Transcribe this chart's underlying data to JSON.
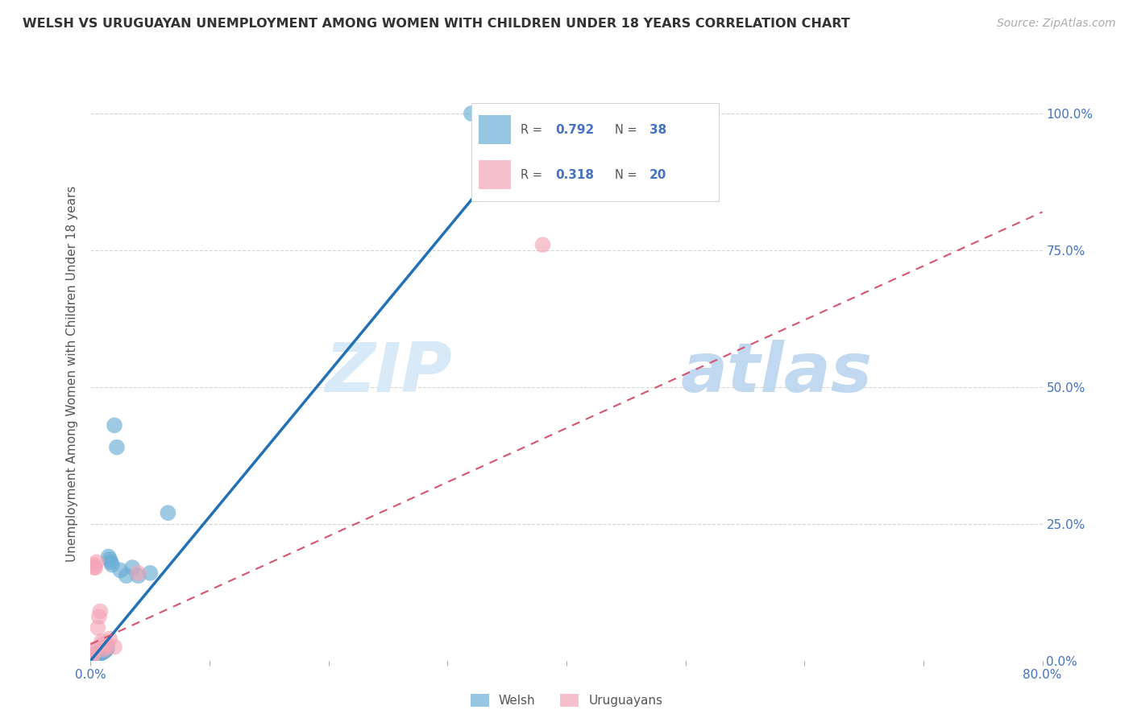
{
  "title": "WELSH VS URUGUAYAN UNEMPLOYMENT AMONG WOMEN WITH CHILDREN UNDER 18 YEARS CORRELATION CHART",
  "source": "Source: ZipAtlas.com",
  "ylabel": "Unemployment Among Women with Children Under 18 years",
  "xlabel": "",
  "xlim": [
    0,
    0.8
  ],
  "ylim": [
    0,
    1.05
  ],
  "welsh_R": 0.792,
  "welsh_N": 38,
  "uruguayan_R": 0.318,
  "uruguayan_N": 20,
  "welsh_color": "#6baed6",
  "uruguayan_color": "#f4a6b8",
  "regression_welsh_color": "#2171b5",
  "regression_uruguayan_color": "#d6546e",
  "watermark_zip_color": "#d8eaf8",
  "watermark_atlas_color": "#c0d8f0",
  "background_color": "#ffffff",
  "welsh_x": [
    0.001,
    0.001,
    0.002,
    0.002,
    0.003,
    0.003,
    0.004,
    0.004,
    0.005,
    0.005,
    0.006,
    0.006,
    0.007,
    0.007,
    0.008,
    0.008,
    0.009,
    0.009,
    0.01,
    0.01,
    0.011,
    0.012,
    0.013,
    0.014,
    0.015,
    0.016,
    0.017,
    0.018,
    0.02,
    0.022,
    0.025,
    0.03,
    0.035,
    0.04,
    0.05,
    0.065,
    0.32,
    0.38
  ],
  "welsh_y": [
    0.005,
    0.007,
    0.006,
    0.008,
    0.007,
    0.009,
    0.008,
    0.01,
    0.009,
    0.011,
    0.01,
    0.013,
    0.011,
    0.014,
    0.013,
    0.015,
    0.014,
    0.016,
    0.015,
    0.017,
    0.016,
    0.018,
    0.02,
    0.022,
    0.19,
    0.185,
    0.18,
    0.175,
    0.43,
    0.39,
    0.165,
    0.155,
    0.17,
    0.155,
    0.16,
    0.27,
    1.0,
    1.0
  ],
  "uruguayan_x": [
    0.001,
    0.001,
    0.002,
    0.002,
    0.003,
    0.003,
    0.004,
    0.005,
    0.006,
    0.007,
    0.008,
    0.009,
    0.01,
    0.011,
    0.012,
    0.014,
    0.016,
    0.02,
    0.04,
    0.38
  ],
  "uruguayan_y": [
    0.005,
    0.015,
    0.01,
    0.02,
    0.17,
    0.175,
    0.17,
    0.18,
    0.06,
    0.08,
    0.09,
    0.035,
    0.03,
    0.02,
    0.025,
    0.03,
    0.04,
    0.025,
    0.16,
    0.76
  ],
  "welsh_line_x": [
    0.0,
    0.38
  ],
  "welsh_line_y": [
    0.0,
    1.0
  ],
  "uru_line_x": [
    0.0,
    0.8
  ],
  "uru_line_y": [
    0.03,
    0.82
  ]
}
